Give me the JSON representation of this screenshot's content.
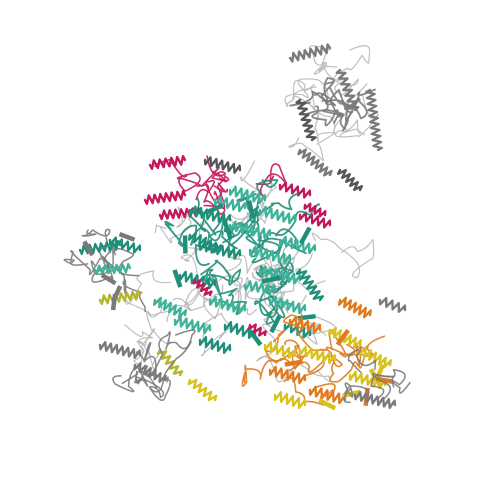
{
  "image": {
    "kind": "ribbon-diagram-protein-complex",
    "background": "#ffffff"
  },
  "palette": {
    "teal": "#1f8f7a",
    "teal_light": "#3fb39a",
    "crimson": "#c2185b",
    "gray": "#7a7a7a",
    "gray_dark": "#55555a",
    "olive": "#b5b52a",
    "yellow": "#d9c21f",
    "orange": "#e07a1f",
    "coil": "#b8b8b8"
  },
  "legend": []
}
